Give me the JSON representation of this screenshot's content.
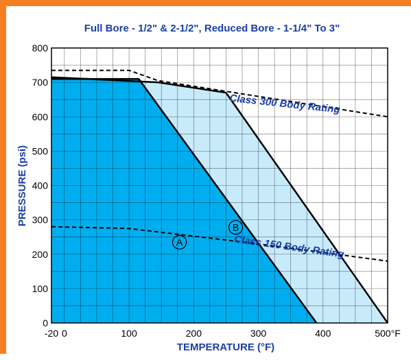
{
  "chart_data": {
    "type": "area",
    "title": "Full Bore - 1/2\" & 2-1/2\", Reduced Bore - 1-1/4\" To 3\"",
    "xlabel": "TEMPERATURE (°F)",
    "ylabel": "PRESSURE (psi)",
    "xlim": [
      -20,
      500
    ],
    "ylim": [
      0,
      800
    ],
    "x_ticks": [
      -20,
      0,
      100,
      200,
      300,
      400,
      500
    ],
    "x_tick_labels": [
      "-20",
      "0",
      "100",
      "200",
      "300",
      "400",
      "500°F"
    ],
    "y_ticks": [
      0,
      100,
      200,
      300,
      400,
      500,
      600,
      700,
      800
    ],
    "y_tick_labels": [
      "0",
      "100",
      "200",
      "300",
      "400",
      "500",
      "600",
      "700",
      "800"
    ],
    "grid": true,
    "series": [
      {
        "name": "A",
        "fill": "#00aeef",
        "points": [
          [
            -20,
            710
          ],
          [
            115,
            710
          ],
          [
            390,
            0
          ]
        ]
      },
      {
        "name": "B",
        "fill": "#c8ebfb",
        "points": [
          [
            -20,
            715
          ],
          [
            145,
            700
          ],
          [
            250,
            670
          ],
          [
            500,
            0
          ]
        ]
      }
    ],
    "reference_lines": [
      {
        "name": "Class 300 Body Rating",
        "style": "dashed",
        "points": [
          [
            -20,
            735
          ],
          [
            100,
            735
          ],
          [
            145,
            705
          ],
          [
            500,
            600
          ]
        ]
      },
      {
        "name": "Class 150 Body Rating",
        "style": "dashed",
        "points": [
          [
            -20,
            280
          ],
          [
            100,
            275
          ],
          [
            300,
            230
          ],
          [
            500,
            180
          ]
        ]
      }
    ],
    "annotations": [
      {
        "text": "A",
        "x": 178,
        "y": 235,
        "circled": true
      },
      {
        "text": "B",
        "x": 265,
        "y": 278,
        "circled": true
      },
      {
        "text": "Class 300 Body Rating",
        "x": 255,
        "y": 645
      },
      {
        "text": "Class 150 Body Rating",
        "x": 262,
        "y": 235
      }
    ],
    "colors": {
      "frame": "#f47f22",
      "text": "#1a3da8",
      "axis": "#000000",
      "grid": "#000000"
    }
  }
}
